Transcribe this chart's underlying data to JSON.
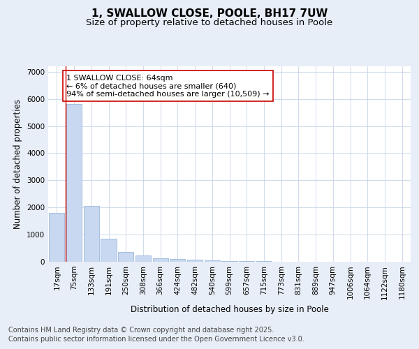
{
  "title": "1, SWALLOW CLOSE, POOLE, BH17 7UW",
  "subtitle": "Size of property relative to detached houses in Poole",
  "xlabel": "Distribution of detached houses by size in Poole",
  "ylabel": "Number of detached properties",
  "categories": [
    "17sqm",
    "75sqm",
    "133sqm",
    "191sqm",
    "250sqm",
    "308sqm",
    "366sqm",
    "424sqm",
    "482sqm",
    "540sqm",
    "599sqm",
    "657sqm",
    "715sqm",
    "773sqm",
    "831sqm",
    "889sqm",
    "947sqm",
    "1006sqm",
    "1064sqm",
    "1122sqm",
    "1180sqm"
  ],
  "values": [
    1800,
    5800,
    2050,
    840,
    360,
    220,
    130,
    110,
    80,
    50,
    30,
    20,
    15,
    0,
    0,
    0,
    0,
    0,
    0,
    0,
    0
  ],
  "bar_color": "#c8d8f0",
  "bar_edge_color": "#9ab8dc",
  "ann_line1": "1 SWALLOW CLOSE: 64sqm",
  "ann_line2": "← 6% of detached houses are smaller (640)",
  "ann_line3": "94% of semi-detached houses are larger (10,509) →",
  "annotation_box_color": "#cc0000",
  "ylim": [
    0,
    7200
  ],
  "yticks": [
    0,
    1000,
    2000,
    3000,
    4000,
    5000,
    6000,
    7000
  ],
  "background_color": "#e8eef7",
  "plot_bg_color": "#ffffff",
  "grid_color": "#c8d4e8",
  "footer_line1": "Contains HM Land Registry data © Crown copyright and database right 2025.",
  "footer_line2": "Contains public sector information licensed under the Open Government Licence v3.0.",
  "title_fontsize": 11,
  "subtitle_fontsize": 9.5,
  "axis_label_fontsize": 8.5,
  "tick_fontsize": 7.5,
  "ann_fontsize": 8,
  "footer_fontsize": 7
}
